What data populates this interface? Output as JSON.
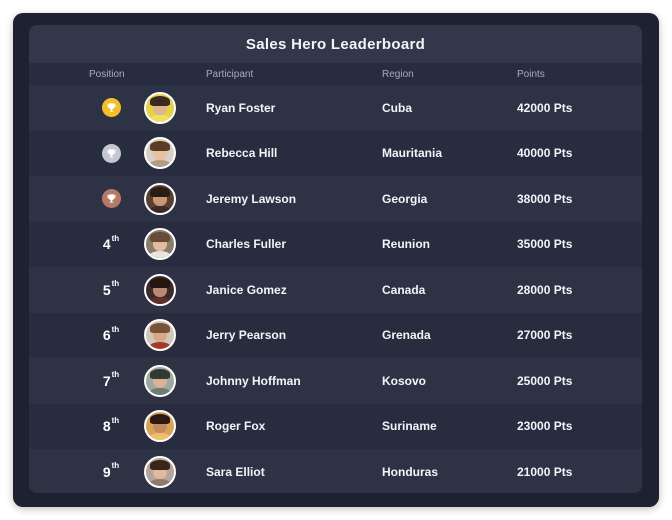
{
  "title": "Sales Hero Leaderboard",
  "columns": {
    "position": "Position",
    "participant": "Participant",
    "region": "Region",
    "points": "Points"
  },
  "colors": {
    "gold": "#f3c02b",
    "silver": "#c4c7cf",
    "bronze": "#b57a66"
  },
  "rows": [
    {
      "medal": "gold",
      "icon": "trophy-icon",
      "name": "Ryan Foster",
      "region": "Cuba",
      "points": "42000 Pts",
      "avatar_bg": "#e6d24a",
      "skin": "#e0b48f",
      "hair": "#3a2a1d",
      "shirt": "#f0e06a"
    },
    {
      "medal": "silver",
      "icon": "trophy-icon",
      "name": "Rebecca Hill",
      "region": "Mauritania",
      "points": "40000 Pts",
      "avatar_bg": "#d8cfc6",
      "skin": "#e8c1a0",
      "hair": "#5b3b26",
      "shirt": "#b59a86"
    },
    {
      "medal": "bronze",
      "icon": "trophy-icon",
      "name": "Jeremy Lawson",
      "region": "Georgia",
      "points": "38000 Pts",
      "avatar_bg": "#5a4033",
      "skin": "#c99676",
      "hair": "#2b1c14",
      "shirt": "#3c2b22"
    },
    {
      "rank": "4",
      "suffix": "th",
      "name": "Charles Fuller",
      "region": "Reunion",
      "points": "35000 Pts",
      "avatar_bg": "#8b7d6e",
      "skin": "#e3bc9c",
      "hair": "#6a4b36",
      "shirt": "#e8e4dd"
    },
    {
      "rank": "5",
      "suffix": "th",
      "name": "Janice Gomez",
      "region": "Canada",
      "points": "28000 Pts",
      "avatar_bg": "#3b2a29",
      "skin": "#b98a76",
      "hair": "#24150f",
      "shirt": "#5a2f2c"
    },
    {
      "rank": "6",
      "suffix": "th",
      "name": "Jerry Pearson",
      "region": "Grenada",
      "points": "27000 Pts",
      "avatar_bg": "#cfc6bc",
      "skin": "#d7a98a",
      "hair": "#7a5238",
      "shirt": "#a33a2e"
    },
    {
      "rank": "7",
      "suffix": "th",
      "name": "Johnny Hoffman",
      "region": "Kosovo",
      "points": "25000 Pts",
      "avatar_bg": "#9fa7a2",
      "skin": "#dcb195",
      "hair": "#2f3a33",
      "shirt": "#6f7a70"
    },
    {
      "rank": "8",
      "suffix": "th",
      "name": "Roger Fox",
      "region": "Suriname",
      "points": "23000 Pts",
      "avatar_bg": "#d9a45a",
      "skin": "#c48a5e",
      "hair": "#2a1a10",
      "shirt": "#f0c070"
    },
    {
      "rank": "9",
      "suffix": "th",
      "name": "Sara Elliot",
      "region": "Honduras",
      "points": "21000 Pts",
      "avatar_bg": "#b2a59b",
      "skin": "#e2b99b",
      "hair": "#3b2517",
      "shirt": "#8e7a6c"
    }
  ]
}
